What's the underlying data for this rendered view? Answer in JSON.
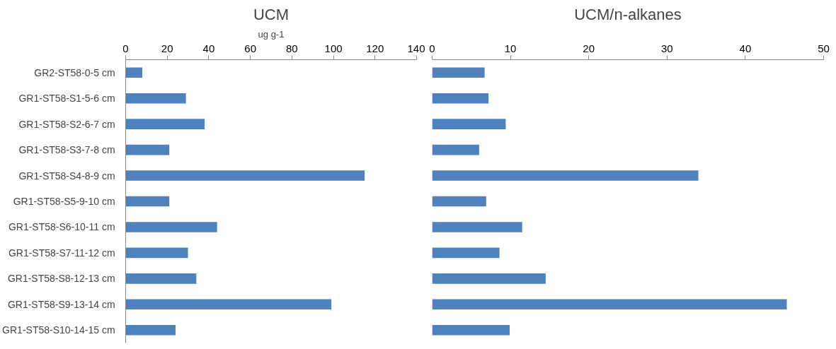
{
  "chart_data": [
    {
      "type": "bar",
      "orientation": "horizontal",
      "title": "UCM",
      "xlabel": "ug g-1",
      "categories": [
        "GR2-ST58-0-5  cm",
        "GR1-ST58-S1-5-6  cm",
        "GR1-ST58-S2-6-7  cm",
        "GR1-ST58-S3-7-8  cm",
        "GR1-ST58-S4-8-9  cm",
        "GR1-ST58-S5-9-10  cm",
        "GR1-ST58-S6-10-11  cm",
        "GR1-ST58-S7-11-12  cm",
        "GR1-ST58-S8-12-13  cm",
        "GR1-ST58-S9-13-14  cm",
        "GR1-ST58-S10-14-15  cm"
      ],
      "values": [
        8,
        29,
        38,
        21,
        115,
        21,
        44,
        30,
        34,
        99,
        24
      ],
      "color": "#4f81bd",
      "xlim": [
        0,
        140
      ],
      "xticks": [
        0,
        20,
        40,
        60,
        80,
        100,
        120,
        140
      ]
    },
    {
      "type": "bar",
      "orientation": "horizontal",
      "title": "UCM/n-alkanes",
      "categories": [
        null,
        null,
        null,
        null,
        null,
        null,
        null,
        null,
        null,
        null,
        null
      ],
      "values": [
        6.7,
        7.2,
        9.4,
        6.0,
        34,
        6.9,
        11.5,
        8.6,
        14.5,
        45.3,
        9.9
      ],
      "color": "#4f81bd",
      "xlim": [
        0,
        50
      ],
      "xticks": [
        0,
        10,
        20,
        30,
        40,
        50
      ]
    }
  ]
}
